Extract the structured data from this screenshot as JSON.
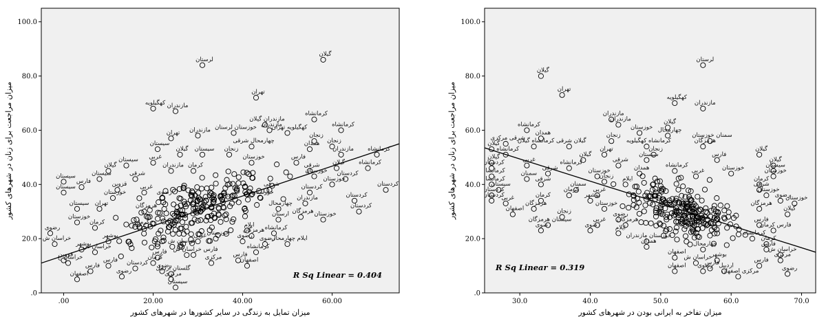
{
  "chart_data": [
    {
      "type": "scatter",
      "xlabel": "میزان تمایل به زندگی در سایر کشورها در شهرهای کشور",
      "ylabel": "میزان مراجعت برای زنان در شهرهای کشور",
      "xlim": [
        -5,
        75
      ],
      "ylim": [
        0,
        105
      ],
      "xticks": [
        0,
        20,
        40,
        60
      ],
      "xtick_labels": [
        ".00",
        "20.00",
        "40.00",
        "60.00"
      ],
      "yticks": [
        0,
        20,
        40,
        60,
        80,
        100
      ],
      "ytick_labels": [
        ".0",
        "20.0",
        "40.0",
        "60.0",
        "80.0",
        "100.0"
      ],
      "annotation": "R Sq Linear = 0.404",
      "fit_line": {
        "x": [
          -5,
          75
        ],
        "y": [
          11,
          55
        ]
      },
      "labeled_points": [
        {
          "x": 31,
          "y": 84,
          "label": "لرستان"
        },
        {
          "x": 58,
          "y": 86,
          "label": "گیلان"
        },
        {
          "x": 43,
          "y": 72,
          "label": "تهران"
        },
        {
          "x": 20,
          "y": 68,
          "label": "کهگیلویه"
        },
        {
          "x": 25,
          "y": 67,
          "label": "مازندران"
        },
        {
          "x": 56,
          "y": 64,
          "label": "کرمانشاه"
        },
        {
          "x": 62,
          "y": 60,
          "label": "کرمانشاه"
        },
        {
          "x": 45,
          "y": 62,
          "label": "مازندران گیلان"
        },
        {
          "x": 46,
          "y": 60,
          "label": "مازندران"
        },
        {
          "x": 38,
          "y": 59,
          "label": "خوزستان لرستان"
        },
        {
          "x": 50,
          "y": 59,
          "label": "کهگیلویه تهران"
        },
        {
          "x": 30,
          "y": 58,
          "label": "مازندران"
        },
        {
          "x": 24,
          "y": 57,
          "label": "تهران"
        },
        {
          "x": 56,
          "y": 56,
          "label": "زنجان"
        },
        {
          "x": 42,
          "y": 54,
          "label": "چهارمحال شرقی"
        },
        {
          "x": 21,
          "y": 53,
          "label": "سیستان"
        },
        {
          "x": 55,
          "y": 53,
          "label": "همدان"
        },
        {
          "x": 60,
          "y": 54,
          "label": "زنجان"
        },
        {
          "x": 26,
          "y": 51,
          "label": "گیلان"
        },
        {
          "x": 31,
          "y": 51,
          "label": "سیستان"
        },
        {
          "x": 37,
          "y": 51,
          "label": "زنجان"
        },
        {
          "x": 62,
          "y": 51,
          "label": "مازندران"
        },
        {
          "x": 70,
          "y": 51,
          "label": "کرمانشاه"
        },
        {
          "x": 20,
          "y": 48,
          "label": "غربی"
        },
        {
          "x": 14,
          "y": 47,
          "label": "سیستان"
        },
        {
          "x": 42,
          "y": 48,
          "label": "خوزستان"
        },
        {
          "x": 52,
          "y": 48,
          "label": "فارس"
        },
        {
          "x": 61,
          "y": 46,
          "label": "گیلان"
        },
        {
          "x": 68,
          "y": 46,
          "label": "کرمانشاه"
        },
        {
          "x": 10,
          "y": 45,
          "label": "گیلان"
        },
        {
          "x": 24,
          "y": 45,
          "label": "مازندران"
        },
        {
          "x": 29,
          "y": 45,
          "label": "کرمان"
        },
        {
          "x": 55,
          "y": 45,
          "label": "شرقی"
        },
        {
          "x": 56,
          "y": 43,
          "label": "خوزستان"
        },
        {
          "x": 63,
          "y": 42,
          "label": "کردستان"
        },
        {
          "x": 8,
          "y": 42,
          "label": "سیستان"
        },
        {
          "x": 0,
          "y": 41,
          "label": "سیستان"
        },
        {
          "x": 16,
          "y": 42,
          "label": "شرقی"
        },
        {
          "x": 60,
          "y": 40,
          "label": "خوزستان"
        },
        {
          "x": 72,
          "y": 38,
          "label": "کردستان"
        },
        {
          "x": 4,
          "y": 39,
          "label": "فارس"
        },
        {
          "x": 12,
          "y": 38,
          "label": "قزوین"
        },
        {
          "x": 18,
          "y": 37,
          "label": "غربی"
        },
        {
          "x": 46,
          "y": 38,
          "label": "شرقی"
        },
        {
          "x": 55,
          "y": 37,
          "label": "کردستان"
        },
        {
          "x": 0,
          "y": 37,
          "label": "سیستان"
        },
        {
          "x": 11,
          "y": 35,
          "label": "خوزستان"
        },
        {
          "x": 22,
          "y": 35,
          "label": "رضوی"
        },
        {
          "x": 44,
          "y": 35,
          "label": "خوزستان"
        },
        {
          "x": 65,
          "y": 34,
          "label": "کردستان"
        },
        {
          "x": 54,
          "y": 33,
          "label": "مازندران"
        },
        {
          "x": 3,
          "y": 31,
          "label": "سیستان"
        },
        {
          "x": 8,
          "y": 31,
          "label": "تهران"
        },
        {
          "x": 48,
          "y": 31,
          "label": "چهارمحال"
        },
        {
          "x": 66,
          "y": 30,
          "label": "کردستان"
        },
        {
          "x": 18,
          "y": 30,
          "label": "هرمزگان"
        },
        {
          "x": 53,
          "y": 28,
          "label": "هرمزگان"
        },
        {
          "x": 48,
          "y": 27,
          "label": "ارستان"
        },
        {
          "x": 58,
          "y": 27,
          "label": "خوزستان"
        },
        {
          "x": 3,
          "y": 26,
          "label": "خوزستان"
        },
        {
          "x": 7,
          "y": 24,
          "label": "کرمان"
        },
        {
          "x": -3,
          "y": 22,
          "label": "رضوی"
        },
        {
          "x": 17,
          "y": 24,
          "label": "کرمان"
        },
        {
          "x": 41,
          "y": 23,
          "label": "ایلام"
        },
        {
          "x": 47,
          "y": 22,
          "label": "کرمانشاه"
        },
        {
          "x": 42,
          "y": 21,
          "label": "هرمزگان"
        },
        {
          "x": 34,
          "y": 20,
          "label": "خوزستان"
        },
        {
          "x": 40,
          "y": 19,
          "label": "رضوی"
        },
        {
          "x": 45,
          "y": 18,
          "label": "رضوی"
        },
        {
          "x": 50,
          "y": 18,
          "label": "ایلام چهارمحال"
        },
        {
          "x": 10,
          "y": 19,
          "label": "بوشهر"
        },
        {
          "x": 30,
          "y": 19,
          "label": "غربی"
        },
        {
          "x": -2,
          "y": 18,
          "label": "خراسان ش"
        },
        {
          "x": 26,
          "y": 17,
          "label": "خراسان ش"
        },
        {
          "x": 4,
          "y": 16,
          "label": "بوشهر"
        },
        {
          "x": 7,
          "y": 15,
          "label": "خراسان ش"
        },
        {
          "x": 43,
          "y": 15,
          "label": "کرمانشاه"
        },
        {
          "x": 29,
          "y": 14,
          "label": "فارس خراسان ش"
        },
        {
          "x": 21,
          "y": 13,
          "label": "فارس"
        },
        {
          "x": 0,
          "y": 12,
          "label": "قزوین"
        },
        {
          "x": 39,
          "y": 12,
          "label": "فارس"
        },
        {
          "x": 1,
          "y": 11,
          "label": "خراسان ج"
        },
        {
          "x": 20,
          "y": 11,
          "label": "کرمان"
        },
        {
          "x": 33,
          "y": 11,
          "label": "مرکزی"
        },
        {
          "x": 10,
          "y": 10,
          "label": "فارس"
        },
        {
          "x": 41,
          "y": 10,
          "label": "اصفهان"
        },
        {
          "x": 6,
          "y": 8,
          "label": "فارس"
        },
        {
          "x": 16,
          "y": 9,
          "label": "کردستان"
        },
        {
          "x": 22,
          "y": 8,
          "label": "رضوی"
        },
        {
          "x": 24,
          "y": 7,
          "label": "گلستان اردبیل"
        },
        {
          "x": 13,
          "y": 6,
          "label": "رضوی"
        },
        {
          "x": 3,
          "y": 5,
          "label": "اصفهان"
        },
        {
          "x": 24,
          "y": 5,
          "label": "مرکزی"
        },
        {
          "x": 25,
          "y": 2,
          "label": "سیستان"
        }
      ]
    },
    {
      "type": "scatter",
      "xlabel": "میزان تفاخر به ایرانی بودن در شهرهای کشور",
      "ylabel": "میزان مراجعت برای زنان در شهرهای کشور",
      "xlim": [
        25,
        72
      ],
      "ylim": [
        0,
        105
      ],
      "xticks": [
        30,
        40,
        50,
        60,
        70
      ],
      "xtick_labels": [
        "30.0",
        "40.0",
        "50.0",
        "60.0",
        "70.0"
      ],
      "yticks": [
        0,
        20,
        40,
        60,
        80,
        100
      ],
      "ytick_labels": [
        ".0",
        "20.0",
        "40.0",
        "60.0",
        "80.0",
        "100.0"
      ],
      "annotation": "R Sq Linear = 0.319",
      "fit_line": {
        "x": [
          25,
          72
        ],
        "y": [
          53.5,
          15
        ]
      },
      "labeled_points": [
        {
          "x": 56,
          "y": 84,
          "label": "لرستان"
        },
        {
          "x": 33,
          "y": 80,
          "label": "گیلان"
        },
        {
          "x": 36,
          "y": 73,
          "label": "تهران"
        },
        {
          "x": 52,
          "y": 70,
          "label": "کهگیلویه"
        },
        {
          "x": 56,
          "y": 68,
          "label": "مازندران"
        },
        {
          "x": 43,
          "y": 64,
          "label": "مازندران"
        },
        {
          "x": 44,
          "y": 62,
          "label": "مازندران"
        },
        {
          "x": 51,
          "y": 61,
          "label": "گیلان"
        },
        {
          "x": 31,
          "y": 60,
          "label": "کرمانشاه"
        },
        {
          "x": 47,
          "y": 59,
          "label": "خوزستان"
        },
        {
          "x": 51,
          "y": 58,
          "label": "چهارمحال"
        },
        {
          "x": 33,
          "y": 57,
          "label": "همدان"
        },
        {
          "x": 43,
          "y": 56,
          "label": "زنجان"
        },
        {
          "x": 57,
          "y": 56,
          "label": "سمنان خوزستان"
        },
        {
          "x": 28,
          "y": 55,
          "label": "شرقی مرکزی"
        },
        {
          "x": 32,
          "y": 54,
          "label": "کرمانشاه گیلان"
        },
        {
          "x": 37,
          "y": 54,
          "label": "گیلان شرقی"
        },
        {
          "x": 48,
          "y": 54,
          "label": "کرمانشاه کهگیلویه"
        },
        {
          "x": 26,
          "y": 53,
          "label": "گیلان"
        },
        {
          "x": 56,
          "y": 54,
          "label": "هرمزگان"
        },
        {
          "x": 28,
          "y": 51,
          "label": "کرمانشاه"
        },
        {
          "x": 42,
          "y": 51,
          "label": "تهران"
        },
        {
          "x": 49,
          "y": 51,
          "label": "زنجان"
        },
        {
          "x": 64,
          "y": 51,
          "label": "گیلان"
        },
        {
          "x": 39,
          "y": 49,
          "label": "گیلان"
        },
        {
          "x": 48,
          "y": 49,
          "label": "سیستان"
        },
        {
          "x": 58,
          "y": 49,
          "label": "فارس"
        },
        {
          "x": 26,
          "y": 48,
          "label": "گیلان"
        },
        {
          "x": 31,
          "y": 47,
          "label": "غربی"
        },
        {
          "x": 44,
          "y": 47,
          "label": "شرقی"
        },
        {
          "x": 66,
          "y": 47,
          "label": "گیلان"
        },
        {
          "x": 26,
          "y": 46,
          "label": "کردستان"
        },
        {
          "x": 37,
          "y": 46,
          "label": "کرمانشاه"
        },
        {
          "x": 52,
          "y": 45,
          "label": "کرمانشاه"
        },
        {
          "x": 66,
          "y": 45,
          "label": "سیستان"
        },
        {
          "x": 34,
          "y": 44,
          "label": "شرقی"
        },
        {
          "x": 47,
          "y": 44,
          "label": "همدان"
        },
        {
          "x": 60,
          "y": 44,
          "label": "خوزستان"
        },
        {
          "x": 26,
          "y": 43,
          "label": "کرمانشاه"
        },
        {
          "x": 41,
          "y": 43,
          "label": "خوزستان"
        },
        {
          "x": 55,
          "y": 43,
          "label": "غربی"
        },
        {
          "x": 66,
          "y": 43,
          "label": "خوزستان"
        },
        {
          "x": 31,
          "y": 42,
          "label": "سمنان"
        },
        {
          "x": 42,
          "y": 41,
          "label": "زنجان"
        },
        {
          "x": 26,
          "y": 40,
          "label": "کرمانشاه"
        },
        {
          "x": 33,
          "y": 40,
          "label": "شرقی"
        },
        {
          "x": 45,
          "y": 40,
          "label": "ایلام"
        },
        {
          "x": 64,
          "y": 40,
          "label": "کرمان"
        },
        {
          "x": 27,
          "y": 38,
          "label": "سیستان"
        },
        {
          "x": 38,
          "y": 38,
          "label": "سمنان"
        },
        {
          "x": 64,
          "y": 38,
          "label": "شرقی"
        },
        {
          "x": 26,
          "y": 36,
          "label": "کردستان"
        },
        {
          "x": 37,
          "y": 36,
          "label": "کرمان"
        },
        {
          "x": 41,
          "y": 36,
          "label": "غربی"
        },
        {
          "x": 65,
          "y": 36,
          "label": "خوزستان"
        },
        {
          "x": 26,
          "y": 34,
          "label": "کردستان"
        },
        {
          "x": 33,
          "y": 34,
          "label": "کرمان"
        },
        {
          "x": 40,
          "y": 34,
          "label": "بوشهر"
        },
        {
          "x": 67,
          "y": 34,
          "label": "رضوی"
        },
        {
          "x": 28,
          "y": 33,
          "label": "غربی"
        },
        {
          "x": 69,
          "y": 33,
          "label": "خوزستان"
        },
        {
          "x": 32,
          "y": 31,
          "label": "هرمزگان"
        },
        {
          "x": 42,
          "y": 31,
          "label": "خوزستان"
        },
        {
          "x": 64,
          "y": 31,
          "label": "هرمزگان"
        },
        {
          "x": 29,
          "y": 29,
          "label": "اصفهان"
        },
        {
          "x": 36,
          "y": 28,
          "label": "زنجان"
        },
        {
          "x": 44,
          "y": 27,
          "label": "رضوی"
        },
        {
          "x": 68,
          "y": 29,
          "label": "گیلان"
        },
        {
          "x": 34,
          "y": 25,
          "label": "سیستان هرمزگان"
        },
        {
          "x": 41,
          "y": 25,
          "label": "غربی"
        },
        {
          "x": 45,
          "y": 25,
          "label": "هرمزگان"
        },
        {
          "x": 64,
          "y": 25,
          "label": "فارس"
        },
        {
          "x": 33,
          "y": 23,
          "label": "رضوی"
        },
        {
          "x": 40,
          "y": 23,
          "label": "رضوی"
        },
        {
          "x": 44,
          "y": 22,
          "label": "ایلام"
        },
        {
          "x": 66,
          "y": 23,
          "label": "فارس کرمان"
        },
        {
          "x": 48,
          "y": 19,
          "label": "خوزستان مازندران"
        },
        {
          "x": 63,
          "y": 20,
          "label": "کرمانشاه"
        },
        {
          "x": 48,
          "y": 17,
          "label": "همدان"
        },
        {
          "x": 65,
          "y": 18,
          "label": "کرمان"
        },
        {
          "x": 56,
          "y": 16,
          "label": "چهارمحال"
        },
        {
          "x": 65,
          "y": 16,
          "label": "فارس"
        },
        {
          "x": 67,
          "y": 14,
          "label": "خراسان ش"
        },
        {
          "x": 52,
          "y": 13,
          "label": "اصفهان"
        },
        {
          "x": 58,
          "y": 12,
          "label": "بوشهر"
        },
        {
          "x": 67,
          "y": 12,
          "label": "مرکزی"
        },
        {
          "x": 55,
          "y": 11,
          "label": "خراسان ش"
        },
        {
          "x": 64,
          "y": 10,
          "label": "فارس"
        },
        {
          "x": 57,
          "y": 9,
          "label": "فارس"
        },
        {
          "x": 52,
          "y": 8,
          "label": "اصفهان"
        },
        {
          "x": 56,
          "y": 8,
          "label": "رضوی"
        },
        {
          "x": 59,
          "y": 8,
          "label": "اردبیل"
        },
        {
          "x": 61,
          "y": 6,
          "label": "مرکزی اصفهان"
        },
        {
          "x": 68,
          "y": 7,
          "label": "رضوی"
        }
      ]
    }
  ]
}
